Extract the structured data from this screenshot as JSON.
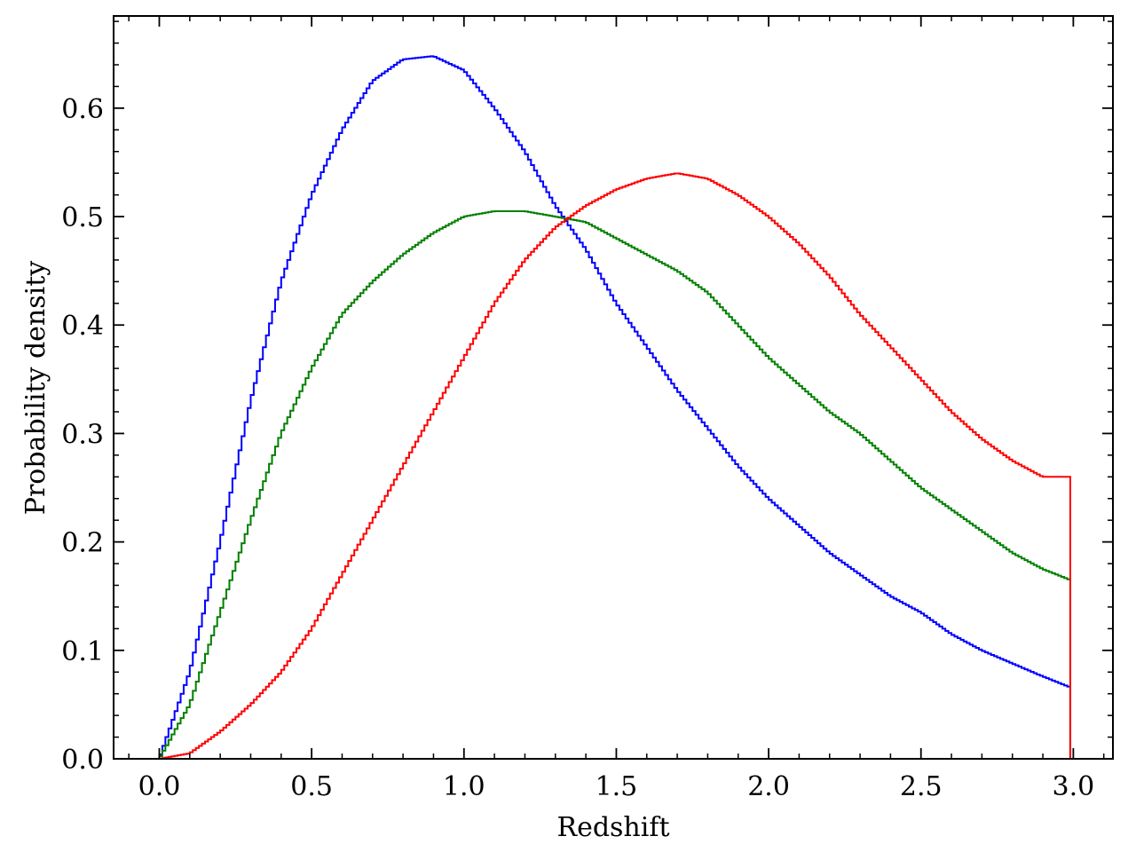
{
  "chart_data": {
    "type": "line",
    "style": "step histogram",
    "title": "",
    "xlabel": "Redshift",
    "ylabel": "Probability density",
    "xlim": [
      -0.15,
      3.13
    ],
    "ylim": [
      0.0,
      0.685
    ],
    "x_ticks": [
      0.0,
      0.5,
      1.0,
      1.5,
      2.0,
      2.5,
      3.0
    ],
    "x_tick_labels": [
      "0.0",
      "0.5",
      "1.0",
      "1.5",
      "2.0",
      "2.5",
      "3.0"
    ],
    "y_ticks": [
      0.0,
      0.1,
      0.2,
      0.3,
      0.4,
      0.5,
      0.6
    ],
    "y_tick_labels": [
      "0.0",
      "0.1",
      "0.2",
      "0.3",
      "0.4",
      "0.5",
      "0.6"
    ],
    "grid": false,
    "legend": "none",
    "x_range": [
      0.0,
      2.99
    ],
    "bin_width": 0.01,
    "x": [
      0.0,
      0.1,
      0.2,
      0.3,
      0.4,
      0.5,
      0.6,
      0.7,
      0.8,
      0.9,
      1.0,
      1.1,
      1.2,
      1.3,
      1.4,
      1.5,
      1.6,
      1.7,
      1.8,
      1.9,
      2.0,
      2.1,
      2.2,
      2.3,
      2.4,
      2.5,
      2.6,
      2.7,
      2.8,
      2.9,
      2.99
    ],
    "series": [
      {
        "color": "#0000ff",
        "values": [
          0.0,
          0.08,
          0.2,
          0.33,
          0.44,
          0.52,
          0.58,
          0.625,
          0.645,
          0.648,
          0.635,
          0.6,
          0.56,
          0.51,
          0.47,
          0.42,
          0.38,
          0.34,
          0.305,
          0.27,
          0.24,
          0.215,
          0.19,
          0.17,
          0.15,
          0.135,
          0.115,
          0.1,
          0.088,
          0.076,
          0.066
        ]
      },
      {
        "color": "#008000",
        "values": [
          0.0,
          0.05,
          0.135,
          0.22,
          0.3,
          0.36,
          0.41,
          0.44,
          0.465,
          0.485,
          0.5,
          0.505,
          0.505,
          0.5,
          0.495,
          0.48,
          0.465,
          0.45,
          0.43,
          0.4,
          0.37,
          0.345,
          0.32,
          0.3,
          0.275,
          0.25,
          0.23,
          0.21,
          0.19,
          0.175,
          0.165
        ]
      },
      {
        "color": "#ff0000",
        "values": [
          0.0,
          0.005,
          0.025,
          0.05,
          0.08,
          0.12,
          0.17,
          0.22,
          0.27,
          0.32,
          0.37,
          0.42,
          0.46,
          0.49,
          0.51,
          0.525,
          0.535,
          0.54,
          0.535,
          0.52,
          0.5,
          0.475,
          0.445,
          0.41,
          0.38,
          0.35,
          0.32,
          0.295,
          0.275,
          0.26,
          0.26
        ]
      }
    ]
  }
}
